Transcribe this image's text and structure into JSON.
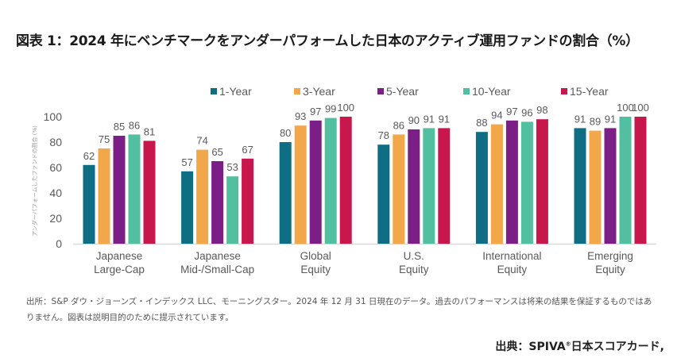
{
  "title": "図表 1：2024 年にベンチマークをアンダーパフォームした日本のアクティブ運用ファンドの割合（%）",
  "note": "出所：S&P ダウ・ジョーンズ・インデックス LLC、モーニングスター。2024 年 12 月 31 日現在のデータ。過去のパフォーマンスは将来の結果を保証するものではありません。図表は説明目的のために提示されています。",
  "source_prefix": "出典：SPIVA",
  "source_mark": "®",
  "source_suffix": "日本スコアカード,",
  "chart_data": {
    "type": "bar",
    "title": "図表 1：2024 年にベンチマークをアンダーパフォームした日本のアクティブ運用ファンドの割合（%）",
    "xlabel": "",
    "ylabel": "アンダーパフォームしたファンドの割合 (%)",
    "ylim": [
      0,
      100
    ],
    "yticks": [
      0,
      20,
      40,
      60,
      80,
      100
    ],
    "grid": false,
    "legend_position": "top",
    "categories": [
      [
        "Japanese",
        "Large-Cap"
      ],
      [
        "Japanese",
        "Mid-/Small-Cap"
      ],
      [
        "Global",
        "Equity"
      ],
      [
        "U.S.",
        "Equity"
      ],
      [
        "International",
        "Equity"
      ],
      [
        "Emerging",
        "Equity"
      ]
    ],
    "series": [
      {
        "name": "1-Year",
        "color": "#0f6e84",
        "values": [
          62,
          57,
          80,
          78,
          88,
          91
        ]
      },
      {
        "name": "3-Year",
        "color": "#f2a74a",
        "values": [
          75,
          74,
          93,
          86,
          94,
          89
        ]
      },
      {
        "name": "5-Year",
        "color": "#7b1f86",
        "values": [
          85,
          65,
          97,
          90,
          97,
          91
        ]
      },
      {
        "name": "10-Year",
        "color": "#52bfa0",
        "values": [
          86,
          53,
          99,
          91,
          96,
          100
        ]
      },
      {
        "name": "15-Year",
        "color": "#c8174c",
        "values": [
          81,
          67,
          100,
          91,
          98,
          100
        ]
      }
    ]
  }
}
